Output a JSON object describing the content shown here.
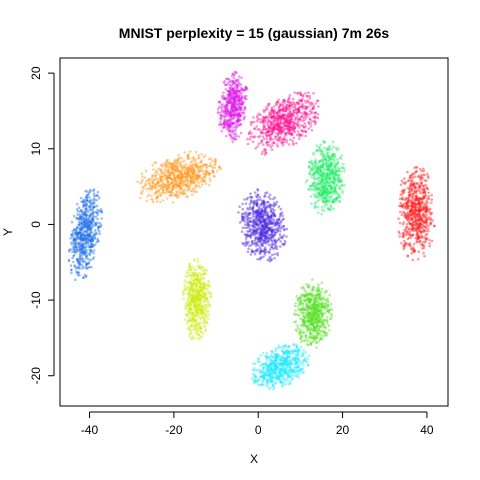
{
  "chart_data": {
    "type": "scatter",
    "title": "MNIST perplexity = 15 (gaussian) 7m 26s",
    "xlabel": "X",
    "ylabel": "Y",
    "xlim": [
      -47,
      45
    ],
    "ylim": [
      -24,
      22
    ],
    "x_ticks": [
      -40,
      -20,
      0,
      20,
      40
    ],
    "y_ticks": [
      -20,
      -10,
      0,
      10,
      20
    ],
    "grid": false,
    "legend": "none",
    "clusters": [
      {
        "color": "#e01fe9",
        "center": [
          -6,
          15.5
        ],
        "radius": [
          3.2,
          4.4
        ],
        "rotation": -15,
        "points": 500
      },
      {
        "color": "#ff1493",
        "center": [
          6,
          13.5
        ],
        "radius": [
          8.5,
          3.4
        ],
        "rotation": 15,
        "points": 650
      },
      {
        "color": "#ff9a1f",
        "center": [
          -19,
          6.2
        ],
        "radius": [
          9.5,
          2.9
        ],
        "rotation": 8,
        "points": 650
      },
      {
        "color": "#22ee66",
        "center": [
          16,
          6.2
        ],
        "radius": [
          4.2,
          4.6
        ],
        "rotation": -25,
        "points": 550
      },
      {
        "color": "#ff2020",
        "center": [
          37.5,
          1.5
        ],
        "radius": [
          4.2,
          5.8
        ],
        "rotation": 0,
        "points": 600
      },
      {
        "color": "#1f6ee8",
        "center": [
          -41,
          -1.2
        ],
        "radius": [
          3.2,
          6.2
        ],
        "rotation": -20,
        "points": 550
      },
      {
        "color": "#4d2de0",
        "center": [
          1,
          -0.2
        ],
        "radius": [
          5.5,
          4.3
        ],
        "rotation": -20,
        "points": 650
      },
      {
        "color": "#ccee11",
        "center": [
          -14.5,
          -10
        ],
        "radius": [
          3.2,
          5.1
        ],
        "rotation": 0,
        "points": 550
      },
      {
        "color": "#55e022",
        "center": [
          13,
          -11.8
        ],
        "radius": [
          4.2,
          4.4
        ],
        "rotation": 0,
        "points": 550
      },
      {
        "color": "#22e8ff",
        "center": [
          5,
          -18.8
        ],
        "radius": [
          6.8,
          2.6
        ],
        "rotation": 10,
        "points": 550
      }
    ]
  }
}
